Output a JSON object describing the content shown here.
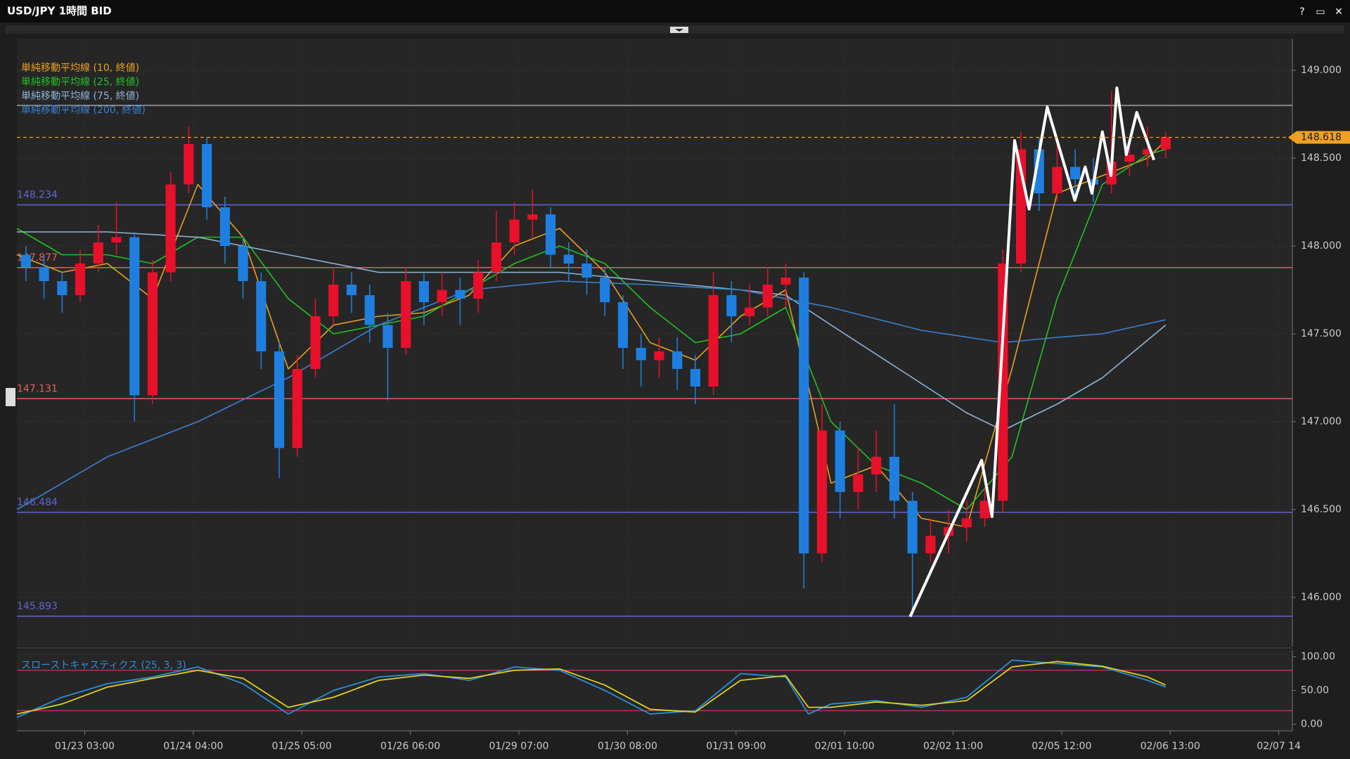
{
  "window_title": "USD/JPY 1時間 BID",
  "window_controls": [
    "?",
    "▭",
    "✕"
  ],
  "chart_data": [
    {
      "type": "candlestick",
      "x": [
        2,
        6,
        10,
        14,
        18,
        22,
        26,
        30,
        34,
        38,
        42,
        46,
        50,
        54,
        58,
        62,
        66,
        70,
        74,
        78,
        82,
        86,
        90,
        94,
        98,
        102,
        106,
        110,
        114,
        118,
        122,
        126,
        130,
        134,
        138,
        142,
        146,
        150,
        154,
        158,
        162,
        166,
        170,
        174,
        178,
        182,
        186,
        190,
        194,
        198,
        202,
        206,
        210,
        214,
        218,
        222,
        226,
        230,
        234,
        238,
        242,
        246,
        250,
        254
      ],
      "open": [
        147.95,
        147.88,
        147.8,
        147.72,
        147.9,
        148.02,
        148.05,
        147.15,
        147.85,
        148.35,
        148.58,
        148.22,
        148.0,
        147.8,
        147.4,
        146.85,
        147.3,
        147.6,
        147.78,
        147.72,
        147.55,
        147.42,
        147.8,
        147.68,
        147.75,
        147.7,
        147.85,
        148.02,
        148.15,
        148.18,
        147.95,
        147.9,
        147.82,
        147.68,
        147.42,
        147.35,
        147.4,
        147.3,
        147.2,
        147.72,
        147.6,
        147.65,
        147.78,
        147.82,
        146.25,
        146.95,
        146.6,
        146.7,
        146.8,
        146.55,
        146.25,
        146.35,
        146.4,
        146.45,
        146.55,
        147.9,
        148.55,
        148.3,
        148.45,
        148.38,
        148.35,
        148.48,
        148.52,
        148.55
      ],
      "high": [
        148.0,
        147.95,
        147.85,
        147.98,
        148.12,
        148.25,
        148.08,
        147.92,
        148.42,
        148.68,
        148.62,
        148.28,
        148.05,
        147.85,
        147.45,
        147.38,
        147.7,
        147.88,
        147.85,
        147.78,
        147.62,
        147.88,
        147.85,
        147.85,
        147.82,
        147.92,
        148.2,
        148.25,
        148.32,
        148.22,
        148.02,
        147.98,
        147.88,
        147.72,
        147.5,
        147.48,
        147.48,
        147.38,
        147.85,
        147.8,
        147.78,
        147.88,
        147.9,
        147.85,
        147.1,
        147.0,
        146.85,
        146.95,
        147.1,
        146.6,
        146.45,
        146.5,
        146.55,
        146.62,
        147.98,
        148.65,
        148.62,
        148.6,
        148.55,
        148.5,
        148.88,
        148.62,
        148.68,
        148.65
      ],
      "low": [
        147.8,
        147.7,
        147.62,
        147.68,
        147.85,
        147.95,
        147.0,
        147.1,
        147.8,
        148.3,
        148.15,
        147.9,
        147.7,
        147.3,
        146.68,
        146.8,
        147.25,
        147.55,
        147.62,
        147.45,
        147.12,
        147.38,
        147.55,
        147.6,
        147.55,
        147.62,
        147.8,
        147.95,
        148.05,
        147.88,
        147.8,
        147.72,
        147.6,
        147.3,
        147.2,
        147.25,
        147.18,
        147.1,
        147.15,
        147.45,
        147.55,
        147.6,
        147.65,
        146.05,
        146.2,
        146.45,
        146.5,
        146.6,
        146.45,
        145.9,
        146.2,
        146.25,
        146.32,
        146.4,
        146.48,
        147.85,
        148.2,
        148.25,
        148.28,
        148.25,
        148.3,
        148.4,
        148.45,
        148.5
      ],
      "close": [
        147.88,
        147.8,
        147.72,
        147.9,
        148.02,
        148.05,
        147.15,
        147.85,
        148.35,
        148.58,
        148.22,
        148.0,
        147.8,
        147.4,
        146.85,
        147.3,
        147.6,
        147.78,
        147.72,
        147.55,
        147.42,
        147.8,
        147.68,
        147.75,
        147.7,
        147.85,
        148.02,
        148.15,
        148.18,
        147.95,
        147.9,
        147.82,
        147.68,
        147.42,
        147.35,
        147.4,
        147.3,
        147.2,
        147.72,
        147.6,
        147.65,
        147.78,
        147.82,
        146.25,
        146.95,
        146.6,
        146.7,
        146.8,
        146.55,
        146.25,
        146.35,
        146.4,
        146.45,
        146.55,
        147.9,
        148.55,
        148.3,
        148.45,
        148.38,
        148.35,
        148.48,
        148.52,
        148.55,
        148.62
      ],
      "up_color": "#e8102a",
      "down_color": "#1f7fe0",
      "xlim": [
        0,
        282
      ],
      "ylim": [
        145.72,
        149.18
      ],
      "yticks": [
        {
          "value": 146,
          "label": "146.000"
        },
        {
          "value": 146.5,
          "label": "146.500"
        },
        {
          "value": 147,
          "label": "147.000"
        },
        {
          "value": 147.5,
          "label": "147.500"
        },
        {
          "value": 148,
          "label": "148.000"
        },
        {
          "value": 148.5,
          "label": "148.500"
        },
        {
          "value": 149,
          "label": "149.000"
        }
      ],
      "grid": true,
      "series": [
        {
          "name": "単純移動平均線 (10, 終値)",
          "color": "#e8a020",
          "x": [
            0,
            10,
            20,
            30,
            40,
            50,
            60,
            70,
            80,
            90,
            100,
            110,
            120,
            130,
            140,
            150,
            160,
            170,
            180,
            190,
            200,
            210,
            220,
            230,
            240,
            250,
            254
          ],
          "values": [
            147.95,
            147.85,
            147.9,
            147.7,
            148.35,
            148.05,
            147.3,
            147.55,
            147.6,
            147.62,
            147.72,
            148.0,
            148.1,
            147.85,
            147.45,
            147.35,
            147.6,
            147.75,
            146.65,
            146.75,
            146.45,
            146.4,
            147.3,
            148.3,
            148.4,
            148.5,
            148.6
          ]
        },
        {
          "name": "単純移動平均線 (25, 終値)",
          "color": "#22c022",
          "x": [
            0,
            10,
            20,
            30,
            40,
            50,
            60,
            70,
            80,
            90,
            100,
            110,
            120,
            130,
            140,
            150,
            160,
            170,
            180,
            190,
            200,
            210,
            220,
            230,
            240,
            250,
            254
          ],
          "values": [
            148.1,
            147.95,
            147.95,
            147.9,
            148.05,
            148.05,
            147.7,
            147.5,
            147.55,
            147.6,
            147.75,
            147.9,
            148.0,
            147.9,
            147.65,
            147.45,
            147.5,
            147.65,
            147.0,
            146.75,
            146.65,
            146.5,
            146.8,
            147.7,
            148.35,
            148.52,
            148.55
          ]
        },
        {
          "name": "単純移動平均線 (75, 終値)",
          "color": "#8fb4d8",
          "x": [
            0,
            20,
            40,
            60,
            80,
            100,
            120,
            140,
            160,
            170,
            180,
            195,
            210,
            218,
            230,
            240,
            254
          ],
          "values": [
            148.08,
            148.08,
            148.05,
            147.95,
            147.85,
            147.85,
            147.85,
            147.8,
            147.75,
            147.72,
            147.55,
            147.3,
            147.05,
            146.95,
            147.1,
            147.25,
            147.55
          ]
        },
        {
          "name": "単純移動平均線 (200, 終値)",
          "color": "#3a80d0",
          "x": [
            0,
            20,
            40,
            60,
            80,
            100,
            120,
            140,
            160,
            170,
            180,
            200,
            218,
            230,
            240,
            254
          ],
          "values": [
            146.5,
            146.8,
            147.0,
            147.25,
            147.55,
            147.75,
            147.8,
            147.78,
            147.75,
            147.7,
            147.65,
            147.52,
            147.45,
            147.48,
            147.5,
            147.58
          ]
        }
      ],
      "levels": [
        148.234,
        147.877,
        147.131,
        146.484,
        145.893
      ],
      "level_colors": [
        "#6464d8",
        "#e06060",
        "#e06060",
        "#6464d8",
        "#6464d8"
      ],
      "reference_line": {
        "value": 148.8,
        "color": "#e0e0e0"
      },
      "last_price": 148.618,
      "last_price_color": "#f0a020",
      "drawing": {
        "color": "#ffffff",
        "x": [
          197.5,
          213.3,
          215.6,
          220.6,
          223.8,
          227.8,
          233.9,
          236.2,
          237.7,
          240,
          241.9,
          243.2,
          245.3,
          247.6,
          251.4
        ],
        "values": [
          145.89,
          146.78,
          146.46,
          148.6,
          148.21,
          148.79,
          148.26,
          148.45,
          148.3,
          148.65,
          148.4,
          148.9,
          148.52,
          148.76,
          148.49
        ]
      }
    },
    {
      "type": "line",
      "title": "スローストキャスティクス (25, 3, 3)",
      "x": [
        0,
        10,
        20,
        30,
        40,
        50,
        60,
        70,
        80,
        90,
        100,
        110,
        120,
        130,
        140,
        150,
        160,
        170,
        175,
        180,
        190,
        200,
        210,
        220,
        230,
        240,
        250,
        254
      ],
      "series": [
        {
          "color": "#2a8fd8",
          "values": [
            10,
            40,
            60,
            70,
            85,
            60,
            15,
            50,
            70,
            75,
            65,
            85,
            80,
            50,
            15,
            20,
            75,
            70,
            15,
            30,
            35,
            25,
            40,
            95,
            90,
            85,
            65,
            55
          ]
        },
        {
          "color": "#e0d020",
          "values": [
            15,
            30,
            55,
            68,
            80,
            68,
            25,
            40,
            65,
            73,
            68,
            80,
            82,
            58,
            22,
            18,
            65,
            72,
            25,
            25,
            33,
            28,
            35,
            85,
            93,
            86,
            70,
            58
          ]
        }
      ],
      "levels": [
        80,
        20
      ],
      "level_color": "#d03070",
      "xlim": [
        0,
        282
      ],
      "ylim": [
        -10,
        110
      ],
      "yticks": [
        {
          "value": 0,
          "label": "0.00"
        },
        {
          "value": 50,
          "label": "50.00"
        },
        {
          "value": 100,
          "label": "100.00"
        }
      ],
      "xticks": [
        {
          "value": 15,
          "label": "01/23 03:00"
        },
        {
          "value": 39,
          "label": "01/24 04:00"
        },
        {
          "value": 63,
          "label": "01/25 05:00"
        },
        {
          "value": 87,
          "label": "01/26 06:00"
        },
        {
          "value": 111,
          "label": "01/29 07:00"
        },
        {
          "value": 135,
          "label": "01/30 08:00"
        },
        {
          "value": 159,
          "label": "01/31 09:00"
        },
        {
          "value": 183,
          "label": "02/01 10:00"
        },
        {
          "value": 207,
          "label": "02/02 11:00"
        },
        {
          "value": 231,
          "label": "02/05 12:00"
        },
        {
          "value": 255,
          "label": "02/06 13:00"
        },
        {
          "value": 279,
          "label": "02/07 14"
        }
      ]
    }
  ]
}
